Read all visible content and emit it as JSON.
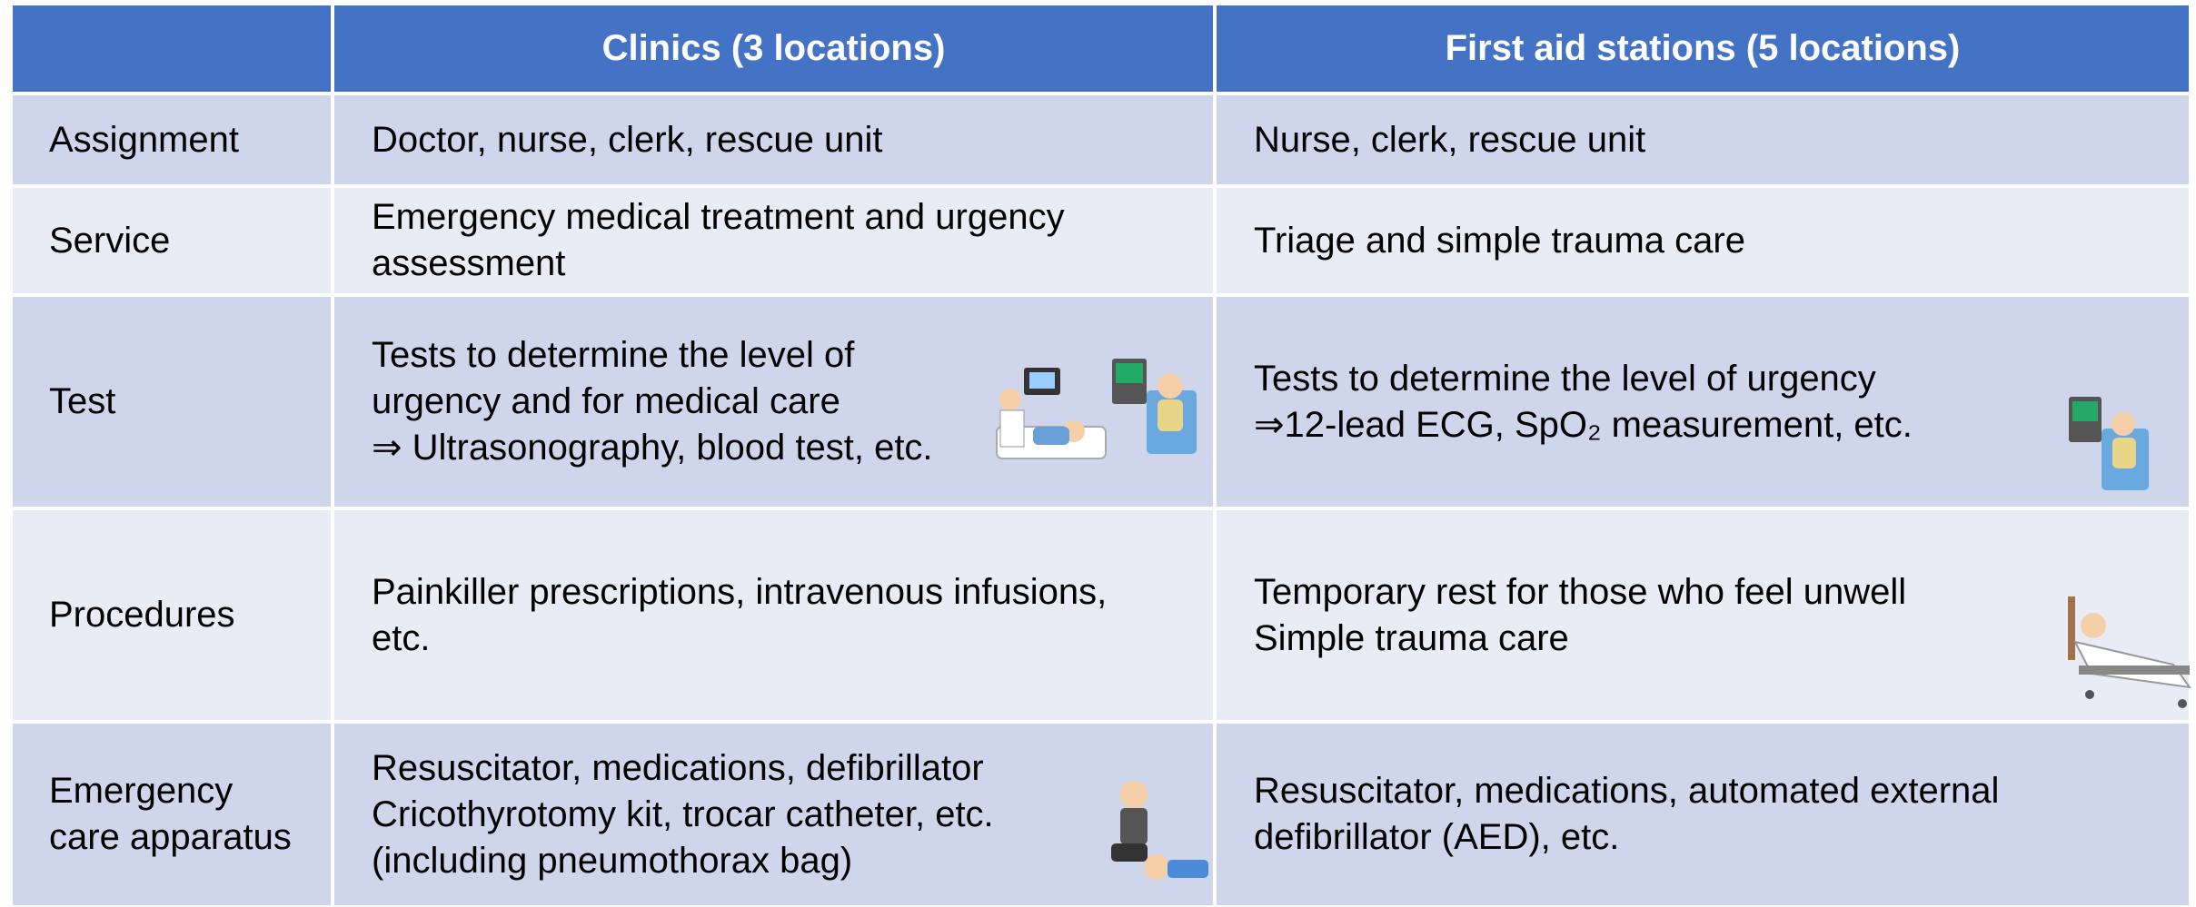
{
  "table": {
    "header": [
      "Clinics (3 locations)",
      "First aid stations (5 locations)"
    ],
    "rows": [
      [
        [
          "Assignment"
        ],
        [
          "Doctor, nurse, clerk, rescue unit"
        ],
        [
          "Nurse, clerk, rescue unit"
        ]
      ],
      [
        [
          "Service"
        ],
        [
          "Emergency medical treatment and urgency",
          "assessment"
        ],
        [
          "Triage and simple trauma care"
        ]
      ],
      [
        [
          "Test"
        ],
        [
          "Tests to determine the level of",
          "urgency and for medical care",
          "⇒ Ultrasonography, blood test, etc."
        ],
        [
          "Tests to determine the level of urgency",
          "⇒12-lead ECG, SpO₂ measurement, etc."
        ]
      ],
      [
        [
          "Procedures"
        ],
        [
          "Painkiller prescriptions, intravenous infusions,",
          "etc."
        ],
        [
          "Temporary rest for those who feel unwell",
          "Simple trauma care"
        ]
      ],
      [
        [
          "Emergency",
          "care apparatus"
        ],
        [
          "Resuscitator, medications, defibrillator",
          "Cricothyrotomy kit, trocar catheter, etc.",
          "(including pneumothorax bag)"
        ],
        [
          "Resuscitator, medications, automated external",
          "defibrillator (AED), etc."
        ]
      ]
    ]
  }
}
